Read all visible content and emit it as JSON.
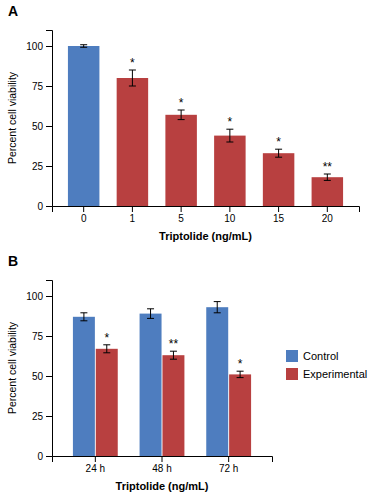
{
  "chart_data": [
    {
      "type": "bar",
      "title": "A",
      "categories": [
        "0",
        "1",
        "5",
        "10",
        "15",
        "20"
      ],
      "values": [
        100,
        80,
        57,
        44,
        33,
        18
      ],
      "errors": [
        0.8,
        5,
        3,
        4,
        2.5,
        2
      ],
      "colors": [
        "#4e7dbf",
        "#b84040",
        "#b84040",
        "#b84040",
        "#b84040",
        "#b84040"
      ],
      "annotations": [
        null,
        "*",
        "*",
        "*",
        "*",
        "**"
      ],
      "xlabel": "Triptolide (ng/mL)",
      "ylabel": "Percent cell viability",
      "ylim": [
        0,
        110
      ],
      "yticks": [
        0,
        25,
        50,
        75,
        100
      ],
      "grid": false
    },
    {
      "type": "bar",
      "title": "B",
      "categories": [
        "24 h",
        "48 h",
        "72 h"
      ],
      "series": [
        {
          "name": "Control",
          "color": "#4e7dbf",
          "values": [
            87,
            89,
            93
          ],
          "errors": [
            2.5,
            3,
            3.5
          ]
        },
        {
          "name": "Experimental",
          "color": "#b84040",
          "values": [
            67,
            63,
            51
          ],
          "errors": [
            2.5,
            2.5,
            2
          ],
          "annotations": [
            "*",
            "**",
            "*"
          ]
        }
      ],
      "xlabel": "Triptolide (ng/mL)",
      "ylabel": "Percent cell viability",
      "ylim": [
        0,
        110
      ],
      "yticks": [
        0,
        25,
        50,
        75,
        100
      ],
      "grid": false,
      "legend": "right"
    }
  ]
}
